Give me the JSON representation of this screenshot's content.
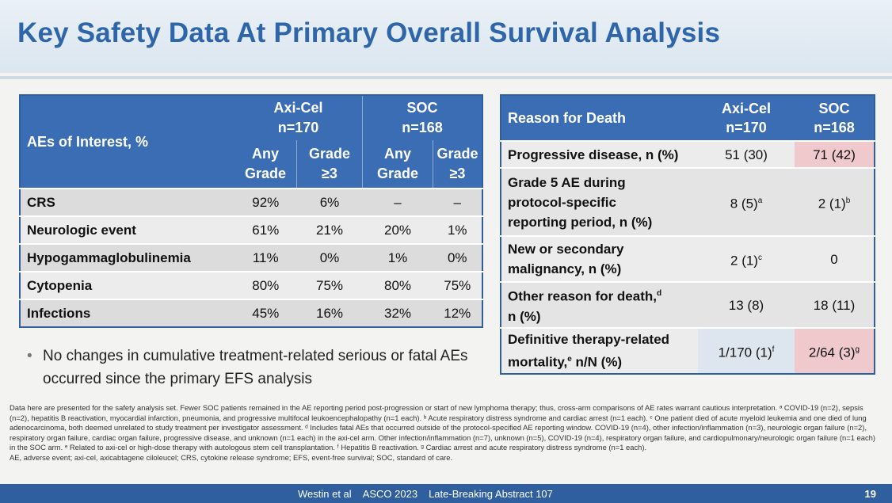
{
  "title": "Key Safety Data At Primary Overall Survival Analysis",
  "table1": {
    "row_header": "AEs of Interest, %",
    "groups": [
      {
        "name": "Axi-Cel",
        "n": "n=170"
      },
      {
        "name": "SOC",
        "n": "n=168"
      }
    ],
    "sub_any_1": "Any",
    "sub_any_2": "Grade",
    "sub_g3_1": "Grade",
    "sub_g3_2": "≥3",
    "rows": [
      {
        "label": "CRS",
        "v": [
          "92%",
          "6%",
          "–",
          "–"
        ]
      },
      {
        "label": "Neurologic event",
        "v": [
          "61%",
          "21%",
          "20%",
          "1%"
        ]
      },
      {
        "label": "Hypogammaglobulinemia",
        "v": [
          "11%",
          "0%",
          "1%",
          "0%"
        ]
      },
      {
        "label": "Cytopenia",
        "v": [
          "80%",
          "75%",
          "80%",
          "75%"
        ]
      },
      {
        "label": "Infections",
        "v": [
          "45%",
          "16%",
          "32%",
          "12%"
        ]
      }
    ]
  },
  "table2": {
    "header": "Reason for Death",
    "col1_name": "Axi-Cel",
    "col1_n": "n=170",
    "col2_name": "SOC",
    "col2_n": "n=168",
    "rows": [
      {
        "l1": "Progressive disease, n (%)",
        "a": "51 (30)",
        "b": "71 (42)"
      },
      {
        "l1": "Grade 5 AE during",
        "l2": "protocol-specific",
        "l3": "reporting period, n (%)",
        "a": "8 (5)",
        "a_sup": "a",
        "b": "2 (1)",
        "b_sup": "b"
      },
      {
        "l1": "New or secondary",
        "l2": "malignancy, n (%)",
        "a": "2 (1)",
        "a_sup": "c",
        "b": "0"
      },
      {
        "l1": "Other reason for death,",
        "l1_sup": "d",
        "l2": "n (%)",
        "a": "13 (8)",
        "b": "18 (11)"
      },
      {
        "l1": "Definitive therapy-related",
        "l2": "mortality,",
        "l2_sup": "e",
        "l2b": " n/N (%)",
        "a": "1/170 (1)",
        "a_sup": "f",
        "b": "2/64 (3)",
        "b_sup": "g"
      }
    ]
  },
  "bullet": "No changes in cumulative treatment-related serious or fatal AEs occurred since the primary EFS analysis",
  "footnote1": "Data here are presented for the safety analysis set. Fewer SOC patients remained in the AE reporting period post-progression or start of new lymphoma therapy; thus, cross-arm comparisons of AE rates warrant cautious interpretation. ᵃ COVID-19 (n=2), sepsis (n=2), hepatitis B reactivation, myocardial infarction, pneumonia, and progressive multifocal leukoencephalopathy (n=1 each). ᵇ Acute respiratory distress syndrome and cardiac arrest (n=1 each). ᶜ One patient died of acute myeloid leukemia and one died of lung adenocarcinoma, both deemed unrelated to study treatment per investigator assessment. ᵈ Includes fatal AEs that occurred outside of the protocol-specified AE reporting window. COVID-19 (n=4), other infection/inflammation (n=3), neurologic organ failure (n=2), respiratory organ failure, cardiac organ failure, progressive disease, and unknown (n=1 each) in the axi-cel arm. Other infection/inflammation (n=7), unknown (n=5), COVID-19 (n=4), respiratory organ failure, and cardiopulmonary/neurologic organ failure (n=1 each) in the SOC arm. ᵉ Related to axi-cel or high-dose therapy with autologous stem cell transplantation. ᶠ Hepatitis B reactivation. ᵍ Cardiac arrest and acute respiratory distress syndrome (n=1 each).",
  "footnote2": "AE, adverse event; axi-cel, axicabtagene ciloleucel; CRS, cytokine release syndrome;  EFS, event-free survival; SOC, standard of care.",
  "footer": {
    "author": "Westin et al",
    "meeting": "ASCO 2023",
    "abstract": "Late-Breaking Abstract 107",
    "page": "19"
  }
}
